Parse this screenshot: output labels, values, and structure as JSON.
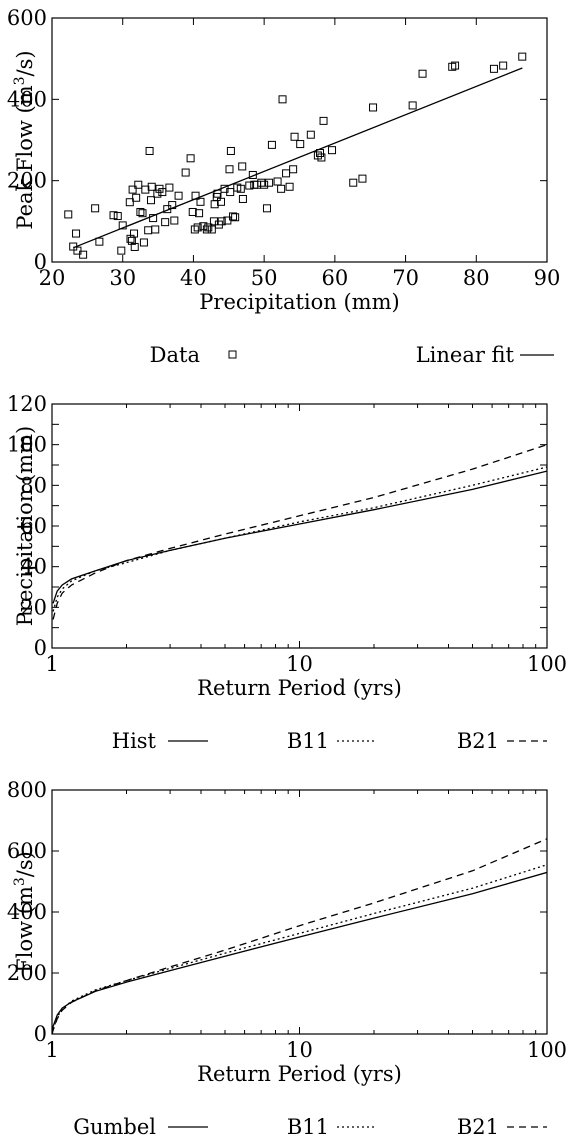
{
  "chart_data": [
    {
      "type": "scatter",
      "xlabel": "Precipitation (mm)",
      "ylabel_main": "Peak Flow (m",
      "ylabel_sup": "3",
      "ylabel_tail": "/s)",
      "xlim": [
        20,
        90
      ],
      "ylim": [
        0,
        600
      ],
      "xticks": [
        20,
        30,
        40,
        50,
        60,
        70,
        80,
        90
      ],
      "yticks": [
        0,
        200,
        400,
        600
      ],
      "legend": [
        "Data",
        "Linear fit"
      ],
      "legend_placement": "bottom",
      "series": [
        {
          "name": "Data",
          "style": "square-marker",
          "points": [
            [
              22.3,
              117
            ],
            [
              23.0,
              38
            ],
            [
              23.4,
              70
            ],
            [
              23.6,
              28
            ],
            [
              24.4,
              18
            ],
            [
              26.1,
              132
            ],
            [
              26.7,
              50
            ],
            [
              28.7,
              115
            ],
            [
              29.3,
              113
            ],
            [
              29.8,
              28
            ],
            [
              30.0,
              90
            ],
            [
              31.0,
              147
            ],
            [
              31.1,
              57
            ],
            [
              31.3,
              52
            ],
            [
              31.4,
              178
            ],
            [
              31.6,
              70
            ],
            [
              31.7,
              37
            ],
            [
              31.9,
              158
            ],
            [
              32.2,
              190
            ],
            [
              32.5,
              123
            ],
            [
              32.8,
              120
            ],
            [
              33.0,
              48
            ],
            [
              33.2,
              178
            ],
            [
              33.6,
              78
            ],
            [
              33.8,
              273
            ],
            [
              34.0,
              152
            ],
            [
              34.1,
              185
            ],
            [
              34.3,
              108
            ],
            [
              34.6,
              80
            ],
            [
              34.9,
              168
            ],
            [
              35.2,
              180
            ],
            [
              35.6,
              172
            ],
            [
              36.0,
              98
            ],
            [
              36.3,
              130
            ],
            [
              36.6,
              183
            ],
            [
              37.0,
              140
            ],
            [
              37.3,
              102
            ],
            [
              37.9,
              163
            ],
            [
              38.9,
              220
            ],
            [
              39.6,
              255
            ],
            [
              39.9,
              123
            ],
            [
              40.2,
              80
            ],
            [
              40.3,
              163
            ],
            [
              40.6,
              85
            ],
            [
              40.8,
              120
            ],
            [
              41.0,
              148
            ],
            [
              41.4,
              88
            ],
            [
              41.9,
              80
            ],
            [
              42.1,
              85
            ],
            [
              42.6,
              80
            ],
            [
              42.9,
              100
            ],
            [
              43.0,
              142
            ],
            [
              43.3,
              160
            ],
            [
              43.4,
              168
            ],
            [
              43.6,
              92
            ],
            [
              43.9,
              148
            ],
            [
              44.0,
              100
            ],
            [
              44.4,
              180
            ],
            [
              44.8,
              102
            ],
            [
              45.1,
              228
            ],
            [
              45.2,
              172
            ],
            [
              45.3,
              273
            ],
            [
              45.6,
              112
            ],
            [
              45.9,
              110
            ],
            [
              46.2,
              183
            ],
            [
              46.7,
              180
            ],
            [
              46.9,
              235
            ],
            [
              47.0,
              155
            ],
            [
              47.9,
              188
            ],
            [
              48.4,
              214
            ],
            [
              48.6,
              190
            ],
            [
              49.0,
              190
            ],
            [
              49.6,
              195
            ],
            [
              50.0,
              190
            ],
            [
              50.4,
              132
            ],
            [
              50.7,
              195
            ],
            [
              51.1,
              288
            ],
            [
              51.9,
              198
            ],
            [
              52.4,
              180
            ],
            [
              52.6,
              400
            ],
            [
              53.1,
              218
            ],
            [
              53.6,
              185
            ],
            [
              54.1,
              228
            ],
            [
              54.3,
              308
            ],
            [
              55.1,
              290
            ],
            [
              56.6,
              313
            ],
            [
              57.6,
              262
            ],
            [
              57.9,
              268
            ],
            [
              58.1,
              257
            ],
            [
              58.4,
              347
            ],
            [
              59.6,
              275
            ],
            [
              62.6,
              195
            ],
            [
              63.9,
              205
            ],
            [
              65.4,
              380
            ],
            [
              71.0,
              385
            ],
            [
              72.4,
              463
            ],
            [
              76.6,
              480
            ],
            [
              77.0,
              483
            ],
            [
              82.5,
              475
            ],
            [
              83.8,
              483
            ],
            [
              86.5,
              505
            ]
          ]
        },
        {
          "name": "Linear fit",
          "style": "solid",
          "points": [
            [
              23.0,
              35
            ],
            [
              86.5,
              477
            ]
          ]
        }
      ]
    },
    {
      "type": "line",
      "xlabel": "Return Period (yrs)",
      "ylabel": "Precipitation (mm)",
      "xscale": "log",
      "xlim": [
        1,
        100
      ],
      "ylim": [
        0,
        120
      ],
      "xticks": [
        1,
        10,
        100
      ],
      "yticks": [
        0,
        10,
        20,
        30,
        40,
        50,
        60,
        70,
        80,
        90,
        100,
        110,
        120
      ],
      "ytick_labels": [
        "0",
        "20",
        "40",
        "60",
        "80",
        "100",
        "120"
      ],
      "legend": [
        "Hist",
        "B11",
        "B21"
      ],
      "legend_placement": "bottom",
      "series": [
        {
          "name": "Hist",
          "style": "solid",
          "points": [
            [
              1.01,
              22
            ],
            [
              1.05,
              28
            ],
            [
              1.1,
              31
            ],
            [
              1.2,
              34
            ],
            [
              1.5,
              38
            ],
            [
              2,
              43
            ],
            [
              3,
              48
            ],
            [
              5,
              54
            ],
            [
              10,
              61
            ],
            [
              20,
              68
            ],
            [
              50,
              78
            ],
            [
              100,
              87
            ]
          ]
        },
        {
          "name": "B11",
          "style": "dotted",
          "points": [
            [
              1.01,
              18
            ],
            [
              1.05,
              25
            ],
            [
              1.1,
              29
            ],
            [
              1.2,
              33
            ],
            [
              1.5,
              38
            ],
            [
              2,
              42
            ],
            [
              3,
              48
            ],
            [
              5,
              54
            ],
            [
              10,
              62
            ],
            [
              20,
              69
            ],
            [
              50,
              80
            ],
            [
              100,
              89
            ]
          ]
        },
        {
          "name": "B21",
          "style": "dashed",
          "points": [
            [
              1.01,
              14
            ],
            [
              1.05,
              22
            ],
            [
              1.1,
              27
            ],
            [
              1.2,
              31
            ],
            [
              1.5,
              37
            ],
            [
              2,
              43
            ],
            [
              3,
              49
            ],
            [
              5,
              56
            ],
            [
              10,
              65
            ],
            [
              20,
              74
            ],
            [
              50,
              88
            ],
            [
              100,
              100
            ]
          ]
        }
      ]
    },
    {
      "type": "line",
      "xlabel": "Return Period (yrs)",
      "ylabel_main": "Flow (m",
      "ylabel_sup": "3",
      "ylabel_tail": "/s)",
      "xscale": "log",
      "xlim": [
        1,
        100
      ],
      "ylim": [
        0,
        800
      ],
      "xticks": [
        1,
        10,
        100
      ],
      "yticks": [
        0,
        200,
        400,
        600,
        800
      ],
      "legend": [
        "Gumbel",
        "B11",
        "B21"
      ],
      "legend_placement": "bottom",
      "series": [
        {
          "name": "Gumbel",
          "style": "solid",
          "points": [
            [
              1.001,
              5
            ],
            [
              1.01,
              25
            ],
            [
              1.05,
              62
            ],
            [
              1.1,
              85
            ],
            [
              1.2,
              105
            ],
            [
              1.5,
              140
            ],
            [
              2,
              170
            ],
            [
              3,
              208
            ],
            [
              5,
              255
            ],
            [
              10,
              318
            ],
            [
              20,
              380
            ],
            [
              50,
              460
            ],
            [
              100,
              530
            ]
          ]
        },
        {
          "name": "B11",
          "style": "dotted",
          "points": [
            [
              1.001,
              0
            ],
            [
              1.01,
              15
            ],
            [
              1.05,
              55
            ],
            [
              1.1,
              82
            ],
            [
              1.2,
              108
            ],
            [
              1.5,
              145
            ],
            [
              2,
              175
            ],
            [
              3,
              215
            ],
            [
              5,
              265
            ],
            [
              10,
              330
            ],
            [
              20,
              395
            ],
            [
              50,
              478
            ],
            [
              100,
              555
            ]
          ]
        },
        {
          "name": "B21",
          "style": "dashed",
          "points": [
            [
              1.001,
              0
            ],
            [
              1.01,
              12
            ],
            [
              1.05,
              50
            ],
            [
              1.1,
              78
            ],
            [
              1.2,
              104
            ],
            [
              1.5,
              142
            ],
            [
              2,
              175
            ],
            [
              3,
              220
            ],
            [
              5,
              275
            ],
            [
              10,
              355
            ],
            [
              20,
              430
            ],
            [
              50,
              535
            ],
            [
              100,
              640
            ]
          ]
        }
      ]
    }
  ]
}
